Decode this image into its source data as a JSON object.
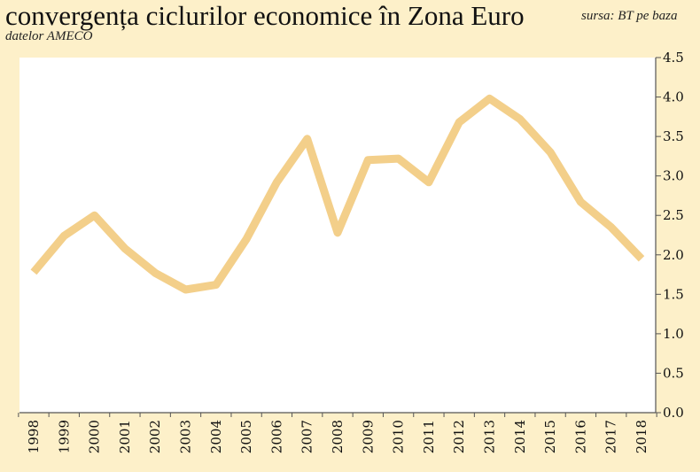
{
  "header": {
    "title": "convergența ciclurilor economice în Zona Euro",
    "source_line1": "sursa: BT pe baza",
    "source_line2": "datelor AMECO"
  },
  "colors": {
    "background": "#fdf0c9",
    "plot_area": "#ffffff",
    "line": "#f3cf8a",
    "axis": "#555555"
  },
  "chart_data": {
    "type": "line",
    "title": "convergența ciclurilor economice în Zona Euro",
    "xlabel": "",
    "ylabel": "",
    "ylim": [
      0,
      4.5
    ],
    "yticks": [
      "0.0",
      "0.5",
      "1.0",
      "1.5",
      "2.0",
      "2.5",
      "3.0",
      "3.5",
      "4.0",
      "4.5"
    ],
    "y_axis_position": "right",
    "grid": false,
    "legend": "none",
    "categories": [
      "1998",
      "1999",
      "2000",
      "2001",
      "2002",
      "2003",
      "2004",
      "2005",
      "2006",
      "2007",
      "2008",
      "2009",
      "2010",
      "2011",
      "2012",
      "2013",
      "2014",
      "2015",
      "2016",
      "2017",
      "2018"
    ],
    "series": [
      {
        "values": [
          1.78,
          2.24,
          2.5,
          2.08,
          1.77,
          1.56,
          1.62,
          2.2,
          2.92,
          3.47,
          2.28,
          3.2,
          3.22,
          2.92,
          3.68,
          3.98,
          3.72,
          3.3,
          2.67,
          2.35,
          1.95
        ]
      }
    ]
  }
}
